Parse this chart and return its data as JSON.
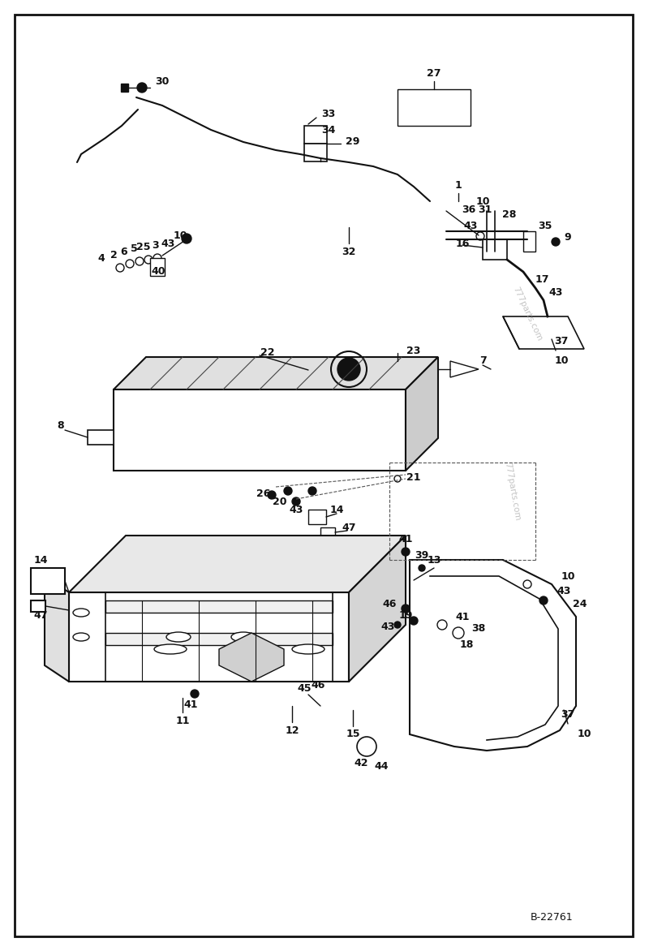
{
  "bg_color": "#ffffff",
  "border_color": "#111111",
  "diagram_id": "B-22761",
  "watermark": "777parts.com",
  "fig_width": 8.0,
  "fig_height": 11.72
}
